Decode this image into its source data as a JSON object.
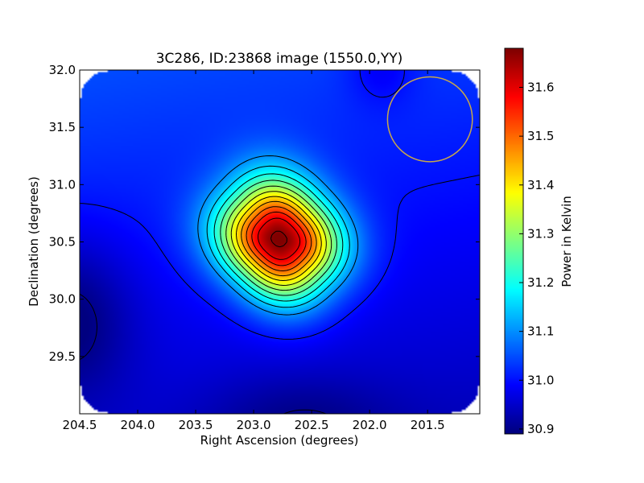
{
  "chart_data": {
    "type": "heatmap",
    "title": "3C286, ID:23868 image (1550.0,YY)",
    "xlabel": "Right Ascension (degrees)",
    "ylabel": "Declination (degrees)",
    "xlim": [
      204.5,
      201.05
    ],
    "ylim": [
      29.0,
      32.0
    ],
    "x_ticks": [
      204.5,
      204.0,
      203.5,
      203.0,
      202.5,
      202.0,
      201.5
    ],
    "x_tick_labels": [
      "204.5",
      "204.0",
      "203.5",
      "203.0",
      "202.5",
      "202.0",
      "201.5"
    ],
    "y_ticks": [
      29.5,
      30.0,
      30.5,
      31.0,
      31.5,
      32.0
    ],
    "y_tick_labels": [
      "29.5",
      "30.0",
      "30.5",
      "31.0",
      "31.5",
      "32.0"
    ],
    "colorbar": {
      "label": "Power in Kelvin",
      "range": [
        30.89,
        31.68
      ],
      "ticks": [
        30.9,
        31.0,
        31.1,
        31.2,
        31.3,
        31.4,
        31.5,
        31.6
      ],
      "tick_labels": [
        "30.9",
        "31.0",
        "31.1",
        "31.2",
        "31.3",
        "31.4",
        "31.5",
        "31.6"
      ],
      "colormap": "jet"
    },
    "peak": {
      "ra": 202.78,
      "dec": 30.52,
      "value": 31.68
    },
    "contours": {
      "levels": [
        30.9,
        31.0,
        31.1,
        31.15,
        31.2,
        31.25,
        31.3,
        31.35,
        31.4,
        31.45,
        31.5,
        31.55,
        31.6,
        31.67
      ],
      "color": "#000000"
    },
    "beam_circle": {
      "ra": 201.48,
      "dec": 31.57,
      "radius_deg": 0.37,
      "color": "#c8a84a"
    },
    "grid": false
  }
}
